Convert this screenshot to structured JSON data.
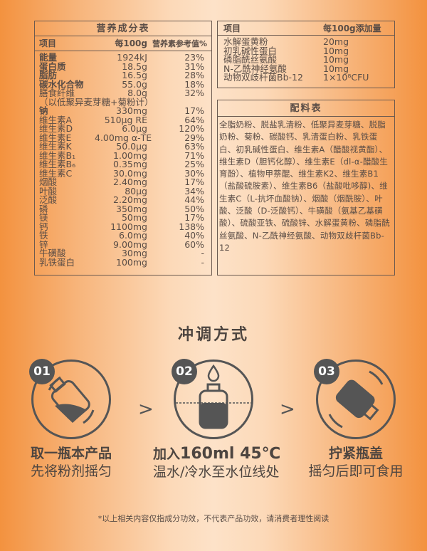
{
  "nutrition": {
    "title": "营养成分表",
    "headers": [
      "项目",
      "每100g",
      "营养素参考值%"
    ],
    "rows": [
      {
        "name": "能量",
        "amount": "1924kJ",
        "nrv": "23%",
        "bold": true
      },
      {
        "name": "蛋白质",
        "amount": "18.5g",
        "nrv": "31%",
        "bold": true
      },
      {
        "name": "脂肪",
        "amount": "16.5g",
        "nrv": "28%",
        "bold": true
      },
      {
        "name": "碳水化合物",
        "amount": "55.0g",
        "nrv": "18%",
        "bold": true
      },
      {
        "name": "膳食纤维",
        "amount": "8.0g",
        "nrv": "32%",
        "bold": false
      },
      {
        "name": "（以低聚异麦芽糖+菊粉计）",
        "amount": "",
        "nrv": "",
        "bold": false
      },
      {
        "name": "钠",
        "amount": "330mg",
        "nrv": "17%",
        "bold": true
      },
      {
        "name": "维生素A",
        "amount": "510μg RE",
        "nrv": "64%",
        "bold": false
      },
      {
        "name": "维生素D",
        "amount": "6.0μg",
        "nrv": "120%",
        "bold": false
      },
      {
        "name": "维生素E",
        "amount": "4.00mg α-TE",
        "nrv": "29%",
        "bold": false
      },
      {
        "name": "维生素K",
        "amount": "50.0μg",
        "nrv": "63%",
        "bold": false
      },
      {
        "name": "维生素B₁",
        "amount": "1.00mg",
        "nrv": "71%",
        "bold": false
      },
      {
        "name": "维生素B₆",
        "amount": "0.35mg",
        "nrv": "25%",
        "bold": false
      },
      {
        "name": "维生素C",
        "amount": "30.0mg",
        "nrv": "30%",
        "bold": false
      },
      {
        "name": "烟酸",
        "amount": "2.40mg",
        "nrv": "17%",
        "bold": false
      },
      {
        "name": "叶酸",
        "amount": "80μg",
        "nrv": "34%",
        "bold": false
      },
      {
        "name": "泛酸",
        "amount": "2.20mg",
        "nrv": "44%",
        "bold": false
      },
      {
        "name": "磷",
        "amount": "350mg",
        "nrv": "50%",
        "bold": false
      },
      {
        "name": "镁",
        "amount": "50mg",
        "nrv": "17%",
        "bold": false
      },
      {
        "name": "钙",
        "amount": "1100mg",
        "nrv": "138%",
        "bold": false
      },
      {
        "name": "铁",
        "amount": "6.0mg",
        "nrv": "40%",
        "bold": false
      },
      {
        "name": "锌",
        "amount": "9.00mg",
        "nrv": "60%",
        "bold": false
      },
      {
        "name": "牛磺酸",
        "amount": "30mg",
        "nrv": "-",
        "bold": false
      },
      {
        "name": "乳铁蛋白",
        "amount": "100mg",
        "nrv": "-",
        "bold": false
      }
    ]
  },
  "additives": {
    "headers": [
      "项目",
      "每100g添加量"
    ],
    "rows": [
      {
        "name": "水解蛋黄粉",
        "amount": "20mg"
      },
      {
        "name": "初乳碱性蛋白",
        "amount": "10mg"
      },
      {
        "name": "磷脂酰丝氨酸",
        "amount": "10mg"
      },
      {
        "name": "N-乙酰神经氨酸",
        "amount": "10mg"
      },
      {
        "name": "动物双歧杆菌Bb-12",
        "amount": "1×10⁸CFU"
      }
    ]
  },
  "ingredients": {
    "title": "配料表",
    "text": "全脂奶粉、脱盐乳清粉、低聚异麦芽糖、脱脂奶粉、菊粉、碳酸钙、乳清蛋白粉、乳铁蛋白、初乳碱性蛋白、维生素A（醋酸视黄酯）、维生素D（胆钙化醇）、维生素E（dl-α-醋酸生育酚）、植物甲萘醌、维生素K2、维生素B1（盐酸硫胺素）、维生素B6（盐酸吡哆醇)、维生素C（L-抗坏血酸钠）、烟酸（烟酰胺）、叶酸、泛酸（D-泛酸钙）、牛磺酸（氨基乙基磺酸）、硫酸亚铁、硫酸锌、水解蛋黄粉、磷脂酰丝氨酸、N-乙酰神经氨酸、动物双歧杆菌Bb-12"
  },
  "howto": {
    "title": "冲调方式",
    "separator": ">",
    "steps": [
      {
        "num": "01",
        "line1": "取一瓶本产品",
        "line2": "先将粉剂摇匀",
        "icon": "bottle-tilted-icon"
      },
      {
        "num": "02",
        "line1_prefix": "加入",
        "line1_big": "160ml 45℃",
        "line2": "温水/冷水至水位线处",
        "icon": "bottle-water-line-icon"
      },
      {
        "num": "03",
        "line1": "拧紧瓶盖",
        "line2": "摇匀后即可食用",
        "icon": "bottle-shake-icon"
      }
    ]
  },
  "footer": "*以上相关内容仅指成分功效，不代表产品功效，请消费者理性阅读",
  "colors": {
    "edge": "#f3923f",
    "center": "#fde2c8",
    "ink": "#555555"
  }
}
